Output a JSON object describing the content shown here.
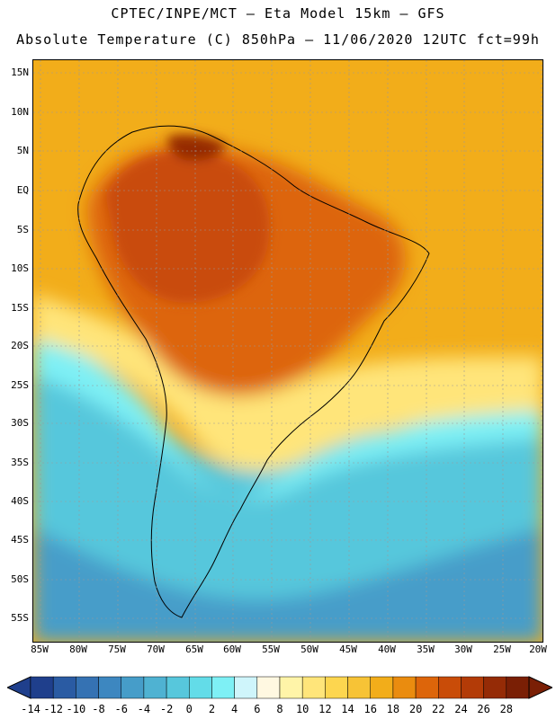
{
  "header": {
    "line1": "CPTEC/INPE/MCT –  Eta Model 15km – GFS",
    "line2": "Absolute Temperature (C) 850hPa – 11/06/2020 12UTC fct=99h"
  },
  "axes": {
    "lat_labels": [
      "15N",
      "10N",
      "5N",
      "EQ",
      "5S",
      "10S",
      "15S",
      "20S",
      "25S",
      "30S",
      "35S",
      "40S",
      "45S",
      "50S",
      "55S"
    ],
    "lon_labels": [
      "85W",
      "80W",
      "75W",
      "70W",
      "65W",
      "60W",
      "55W",
      "50W",
      "45W",
      "40W",
      "35W",
      "30W",
      "25W",
      "20W"
    ]
  },
  "colorbar": {
    "labels": [
      "-14",
      "-12",
      "-10",
      "-8",
      "-6",
      "-4",
      "-2",
      "0",
      "2",
      "4",
      "6",
      "8",
      "10",
      "12",
      "14",
      "16",
      "18",
      "20",
      "22",
      "24",
      "26",
      "28"
    ],
    "colors": [
      "#1f3f8c",
      "#2a5ba3",
      "#3572b3",
      "#3d87c0",
      "#469dc9",
      "#4fb2d2",
      "#57c7dc",
      "#63dce8",
      "#7ef0f5",
      "#cff5fb",
      "#fff8e1",
      "#fff4a8",
      "#ffe57a",
      "#fdd64f",
      "#f7c336",
      "#f2ad1a",
      "#ea8c0f",
      "#dd650a",
      "#c94c08",
      "#b33b07",
      "#952b06",
      "#7a1f05"
    ]
  },
  "map_colors": {
    "ocean_south": "#57c7dc",
    "ocean_cold": "#469dc9",
    "ocean_mid": "#7ef0f5",
    "warm": "#f2ad1a",
    "hot": "#dd650a",
    "hotter": "#c94c08",
    "hottest": "#952b06",
    "mild": "#ffe57a",
    "cool": "#fff8e1"
  }
}
